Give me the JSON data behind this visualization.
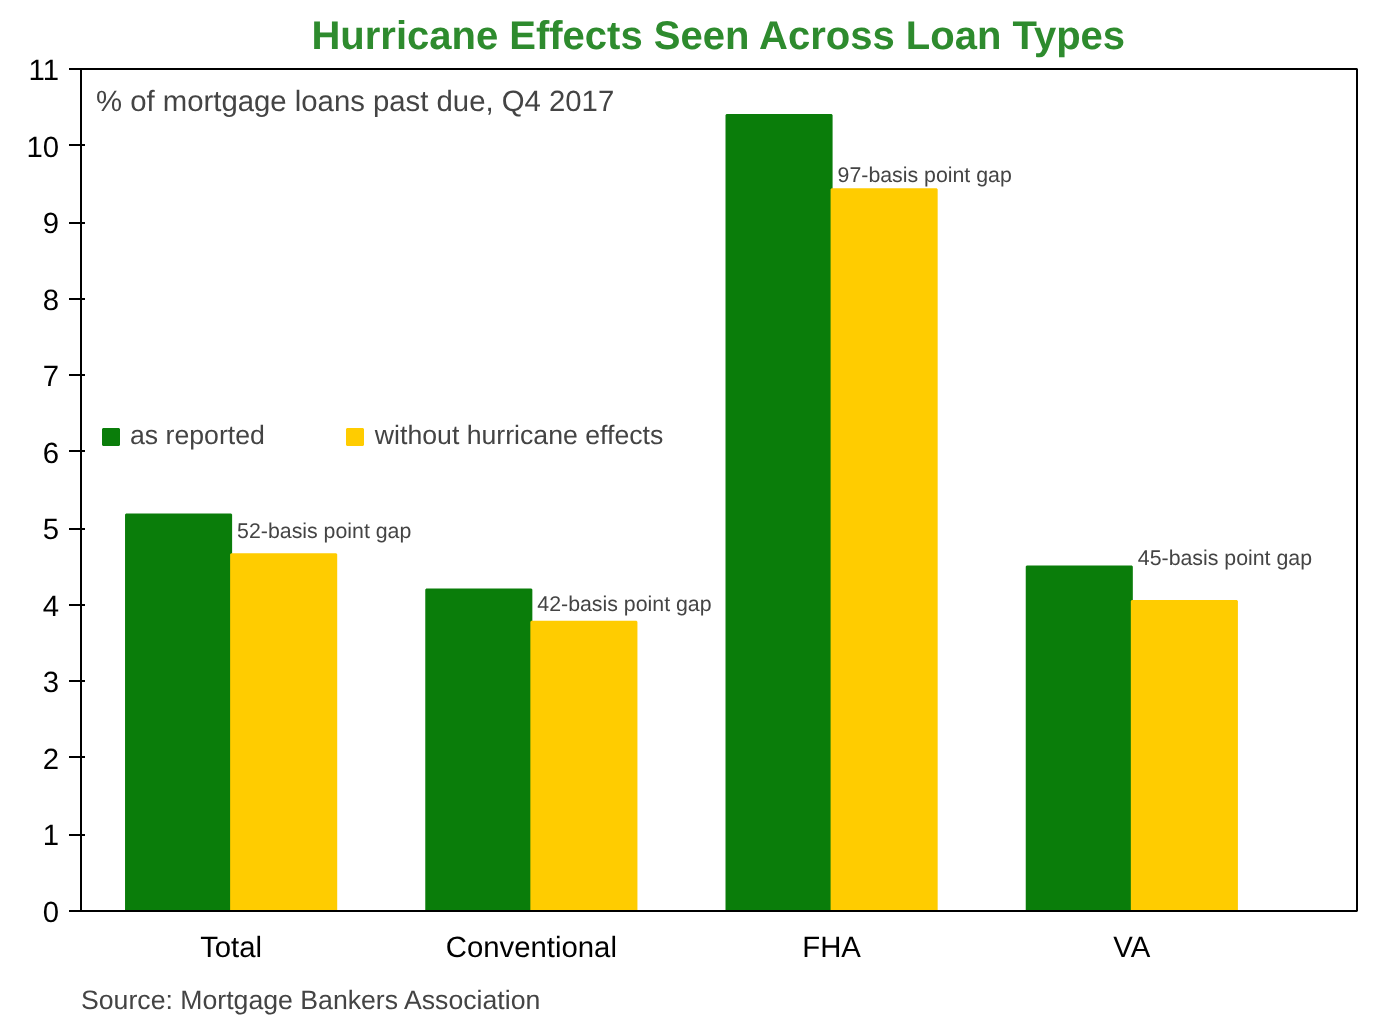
{
  "chart_data": {
    "type": "bar",
    "title": "Hurricane Effects Seen Across Loan Types",
    "ylabel": "% of mortgage loans past due, Q4 2017",
    "categories": [
      "Total",
      "Conventional",
      "FHA",
      "VA"
    ],
    "series": [
      {
        "name": "as reported",
        "color": "#0a7d0a",
        "values": [
          5.18,
          4.2,
          10.4,
          4.5
        ]
      },
      {
        "name": "without hurricane effects",
        "color": "#ffcc00",
        "values": [
          4.66,
          3.78,
          9.43,
          4.05
        ]
      }
    ],
    "ylim": [
      0,
      11
    ],
    "yticks": [
      0,
      1,
      2,
      3,
      4,
      5,
      6,
      7,
      8,
      9,
      10,
      11
    ],
    "grid": false,
    "legend": "top left",
    "annotations": [
      {
        "text": "52-basis point gap",
        "x": "Total",
        "y": 4.95
      },
      {
        "text": "42-basis point gap",
        "x": "Conventional",
        "y": 4.0
      },
      {
        "text": "97-basis point gap",
        "x": "FHA",
        "y": 9.6
      },
      {
        "text": "45-basis point gap",
        "x": "VA",
        "y": 4.6
      },
      "Source: Mortgage Bankers Association"
    ]
  }
}
